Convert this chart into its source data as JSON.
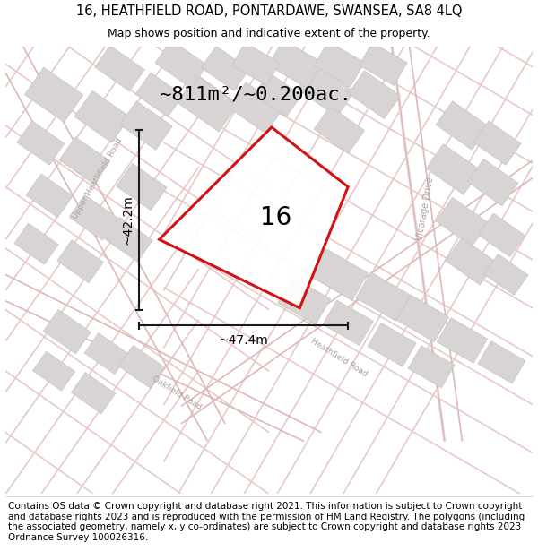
{
  "title_line1": "16, HEATHFIELD ROAD, PONTARDAWE, SWANSEA, SA8 4LQ",
  "title_line2": "Map shows position and indicative extent of the property.",
  "footer_text": "Contains OS data © Crown copyright and database right 2021. This information is subject to Crown copyright and database rights 2023 and is reproduced with the permission of HM Land Registry. The polygons (including the associated geometry, namely x, y co-ordinates) are subject to Crown copyright and database rights 2023 Ordnance Survey 100026316.",
  "area_label": "~811m²/~0.200ac.",
  "width_label": "~47.4m",
  "height_label": "~42.2m",
  "plot_number": "16",
  "map_bg": "#f9f6f6",
  "road_color": "#e8c8c8",
  "road_color2": "#ddb8b8",
  "building_fill": "#d8d4d4",
  "building_edge": "#c8c4c4",
  "plot_edge_color": "#cc0000",
  "plot_fill": "#ffffff",
  "dim_line_color": "#1a1a1a",
  "road_label_color": "#aaa0a0",
  "title_fontsize": 10.5,
  "subtitle_fontsize": 9,
  "footer_fontsize": 7.5,
  "area_fontsize": 16,
  "dim_fontsize": 10,
  "plot_num_fontsize": 20,
  "road_label_fontsize": 6.5
}
